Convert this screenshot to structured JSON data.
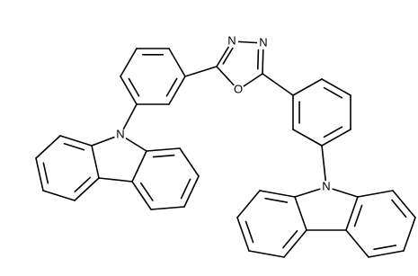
{
  "atoms": [
    "N",
    "N",
    "O",
    "N",
    "N"
  ]
}
